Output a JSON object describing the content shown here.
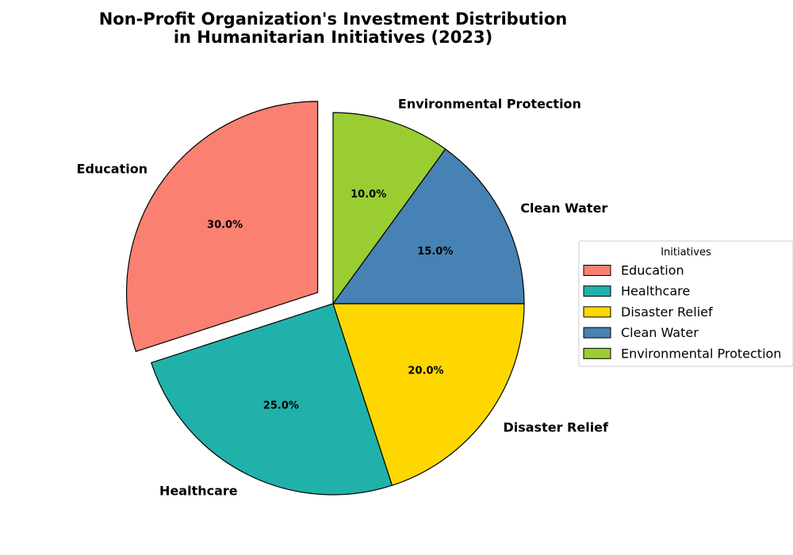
{
  "chart_data": {
    "type": "pie",
    "title_lines": [
      "Non-Profit Organization's Investment Distribution",
      "in Humanitarian Initiatives (2023)"
    ],
    "categories": [
      "Education",
      "Healthcare",
      "Disaster Relief",
      "Clean Water",
      "Environmental Protection"
    ],
    "values": [
      30,
      25,
      20,
      15,
      10
    ],
    "pct_labels": [
      "30.0%",
      "25.0%",
      "20.0%",
      "15.0%",
      "10.0%"
    ],
    "colors": [
      "#fa8072",
      "#20b2aa",
      "#ffd700",
      "#4682b4",
      "#9acd32"
    ],
    "exploded": [
      true,
      false,
      false,
      false,
      false
    ],
    "start_angle_deg": 90,
    "direction": "counterclockwise",
    "legend": {
      "title": "Initiatives",
      "placement": "right"
    }
  }
}
